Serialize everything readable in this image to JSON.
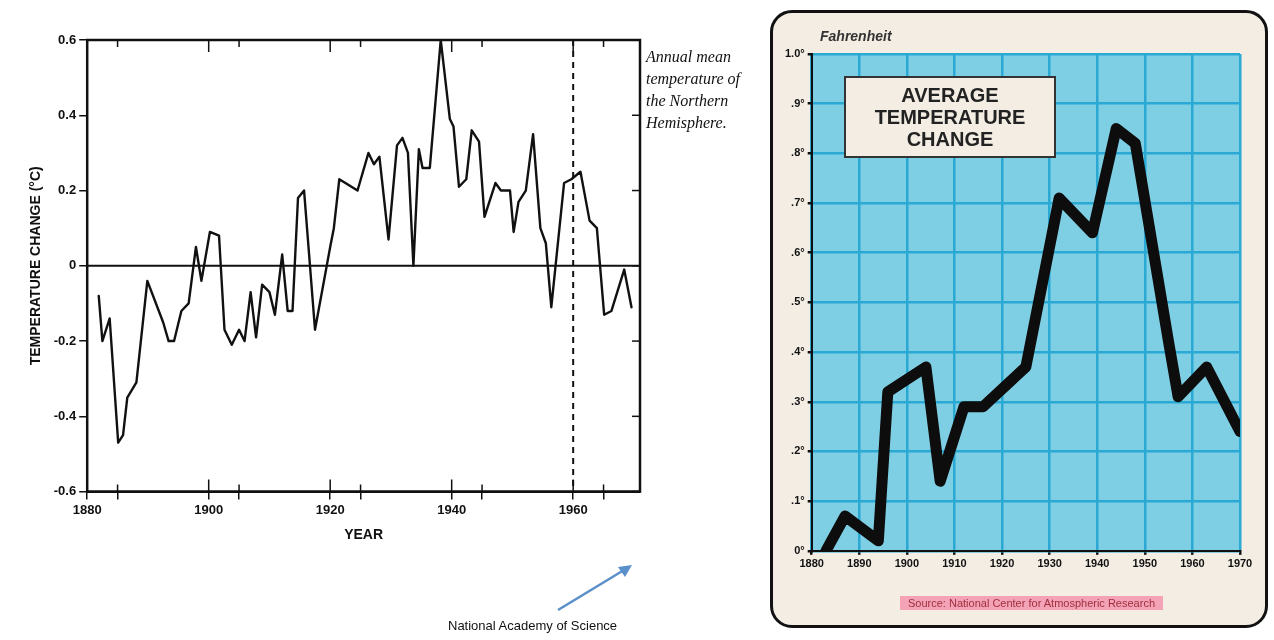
{
  "chart_data": [
    {
      "type": "line",
      "xlabel": "YEAR",
      "ylabel": "TEMPERATURE CHANGE (°C)",
      "annotations": [
        "Annual mean temperature of the Northern Hemisphere.",
        "National Academy of Science"
      ],
      "x": [
        1881.9,
        1882.5,
        1883.7,
        1885.1,
        1885.9,
        1886.6,
        1888.1,
        1889.9,
        1892.5,
        1893.4,
        1894.3,
        1895.5,
        1896.7,
        1897.9,
        1898.8,
        1900.2,
        1901.7,
        1902.6,
        1903.8,
        1905,
        1905.9,
        1906.9,
        1907.8,
        1908.8,
        1910,
        1910.9,
        1912.1,
        1913,
        1913.8,
        1914.7,
        1915.7,
        1917.5,
        1920,
        1920.6,
        1921.5,
        1924.5,
        1926.3,
        1927.2,
        1928.1,
        1929.6,
        1931,
        1931.9,
        1932.8,
        1933.7,
        1934.6,
        1935.2,
        1936.4,
        1938.2,
        1939.7,
        1940.3,
        1941.2,
        1942.4,
        1943.3,
        1944.5,
        1945.4,
        1947.2,
        1948.1,
        1949.6,
        1950.2,
        1951,
        1952.2,
        1953.4,
        1954.6,
        1955.5,
        1956.4,
        1958.5,
        1959.7,
        1961.2,
        1962.7,
        1963.9,
        1965.1,
        1966.3,
        1968.4,
        1969.6
      ],
      "series": [
        {
          "color": "#111111",
          "values": [
            -0.08,
            -0.2,
            -0.14,
            -0.47,
            -0.45,
            -0.35,
            -0.31,
            -0.04,
            -0.15,
            -0.2,
            -0.2,
            -0.12,
            -0.1,
            0.05,
            -0.04,
            0.09,
            0.08,
            -0.17,
            -0.21,
            -0.17,
            -0.2,
            -0.07,
            -0.19,
            -0.05,
            -0.07,
            -0.13,
            0.03,
            -0.12,
            -0.12,
            0.18,
            0.2,
            -0.17,
            0.05,
            0.1,
            0.23,
            0.2,
            0.3,
            0.27,
            0.29,
            0.07,
            0.32,
            0.34,
            0.3,
            0,
            0.31,
            0.26,
            0.26,
            0.6,
            0.39,
            0.37,
            0.21,
            0.23,
            0.36,
            0.33,
            0.13,
            0.22,
            0.2,
            0.2,
            0.09,
            0.17,
            0.2,
            0.35,
            0.1,
            0.06,
            -0.11,
            0.22,
            0.23,
            0.25,
            0.12,
            0.1,
            -0.13,
            -0.12,
            -0.01,
            -0.11
          ]
        }
      ],
      "xlim": [
        1880,
        1971
      ],
      "xticks": [
        1880,
        {
          "value": 1885,
          "label": null
        },
        1900,
        {
          "value": 1905,
          "label": null
        },
        1920,
        {
          "value": 1925,
          "label": null
        },
        1940,
        {
          "value": 1945,
          "label": null
        },
        1960,
        {
          "value": 1965,
          "label": null
        }
      ],
      "ylim": [
        -0.6,
        0.6
      ],
      "yticks": [
        -0.6,
        -0.4,
        -0.2,
        0,
        0.2,
        0.4,
        0.6
      ],
      "ref_lines": [
        {
          "axis": "y",
          "value": 0
        },
        {
          "axis": "x",
          "value": 1960,
          "line_style": "dashed"
        }
      ]
    },
    {
      "type": "line",
      "title": "AVERAGE TEMPERATURE CHANGE",
      "ylabel": "Fahrenheit",
      "annotations": [
        "Source: National Center for Atmospheric Research"
      ],
      "x": [
        1883,
        1887,
        1894,
        1896,
        1904,
        1907,
        1912,
        1916,
        1925,
        1932,
        1939,
        1944,
        1948,
        1955,
        1957,
        1963,
        1970
      ],
      "series": [
        {
          "color": "#0d0d0d",
          "values": [
            0,
            0.07,
            0.02,
            0.32,
            0.37,
            0.14,
            0.29,
            0.29,
            0.37,
            0.71,
            0.64,
            0.85,
            0.82,
            0.42,
            0.31,
            0.37,
            0.24
          ]
        }
      ],
      "xlim": [
        1880,
        1970
      ],
      "xticks": [
        1880,
        1890,
        1900,
        1910,
        1920,
        1930,
        1940,
        1950,
        1960,
        1970
      ],
      "ylim": [
        0,
        1.0
      ],
      "yticks": [
        {
          "value": 0,
          "label": "0°"
        },
        {
          "value": 0.1,
          "label": ".1°"
        },
        {
          "value": 0.2,
          "label": ".2°"
        },
        {
          "value": 0.3,
          "label": ".3°"
        },
        {
          "value": 0.4,
          "label": ".4°"
        },
        {
          "value": 0.5,
          "label": ".5°"
        },
        {
          "value": 0.6,
          "label": ".6°"
        },
        {
          "value": 0.7,
          "label": ".7°"
        },
        {
          "value": 0.8,
          "label": ".8°"
        },
        {
          "value": 0.9,
          "label": ".9°"
        },
        {
          "value": 1.0,
          "label": "1.0°"
        }
      ],
      "grid": true
    }
  ]
}
